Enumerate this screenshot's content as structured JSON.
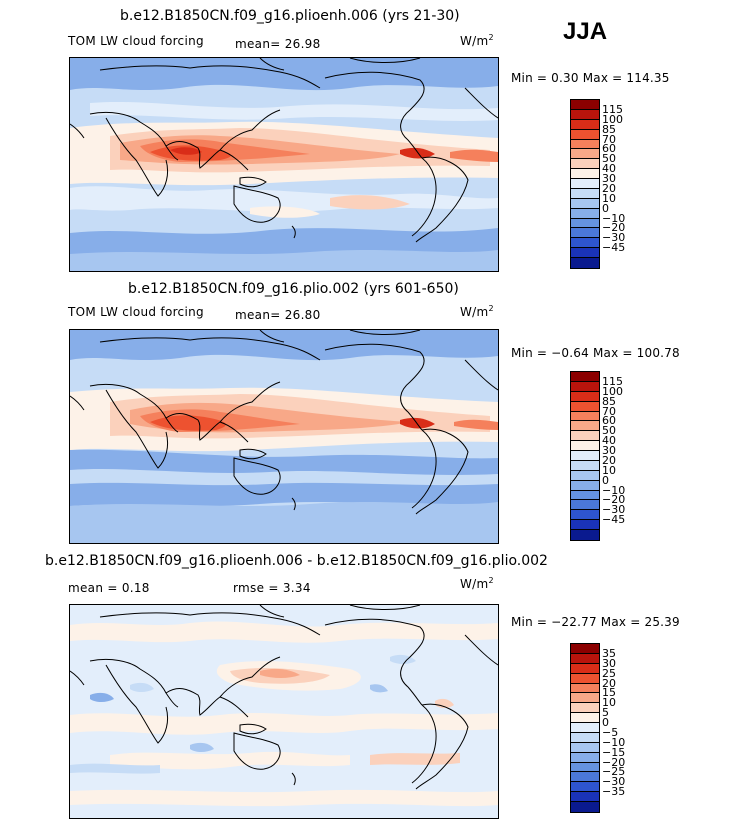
{
  "season": "JJA",
  "panels": [
    {
      "title": "b.e12.B1850CN.f09_g16.plioenh.006 (yrs 21-30)",
      "left_label": "TOM LW cloud forcing",
      "mid_label": "mean=  26.98",
      "units": "W/m",
      "units_sup": "2",
      "minmax": "Min =   0.30 Max = 114.35",
      "cbar_colors": [
        "#8b0000",
        "#b8140c",
        "#d92d18",
        "#ed5230",
        "#f5805c",
        "#f8a888",
        "#fbd1bc",
        "#fdf2e8",
        "#e3eefb",
        "#c6dcf6",
        "#a7c6f0",
        "#87aee9",
        "#6593e0",
        "#4b78d9",
        "#2e55cf",
        "#1a33b8",
        "#0a1a8f"
      ],
      "cbar_labels": [
        "115",
        "100",
        "85",
        "70",
        "60",
        "50",
        "40",
        "30",
        "20",
        "10",
        "0",
        "−10",
        "−20",
        "−30",
        "−45"
      ]
    },
    {
      "title": "b.e12.B1850CN.f09_g16.plio.002 (yrs 601-650)",
      "left_label": "TOM LW cloud forcing",
      "mid_label": "mean=  26.80",
      "units": "W/m",
      "units_sup": "2",
      "minmax": "Min =  −0.64 Max = 100.78",
      "cbar_colors": [
        "#8b0000",
        "#b8140c",
        "#d92d18",
        "#ed5230",
        "#f5805c",
        "#f8a888",
        "#fbd1bc",
        "#fdf2e8",
        "#e3eefb",
        "#c6dcf6",
        "#a7c6f0",
        "#87aee9",
        "#6593e0",
        "#4b78d9",
        "#2e55cf",
        "#1a33b8",
        "#0a1a8f"
      ],
      "cbar_labels": [
        "115",
        "100",
        "85",
        "70",
        "60",
        "50",
        "40",
        "30",
        "20",
        "10",
        "0",
        "−10",
        "−20",
        "−30",
        "−45"
      ]
    },
    {
      "title": "b.e12.B1850CN.f09_g16.plioenh.006 - b.e12.B1850CN.f09_g16.plio.002",
      "left_label": "mean =    0.18",
      "mid_label": "rmse =    3.34",
      "units": "W/m",
      "units_sup": "2",
      "minmax": "Min = −22.77 Max =  25.39",
      "cbar_colors": [
        "#8b0000",
        "#b8140c",
        "#d92d18",
        "#ed5230",
        "#f5805c",
        "#f8a888",
        "#fbd1bc",
        "#fdf2e8",
        "#e3eefb",
        "#c6dcf6",
        "#a7c6f0",
        "#87aee9",
        "#6593e0",
        "#4b78d9",
        "#2e55cf",
        "#1a33b8",
        "#0a1a8f"
      ],
      "cbar_labels": [
        "35",
        "30",
        "25",
        "20",
        "15",
        "10",
        "5",
        "0",
        "−5",
        "−10",
        "−15",
        "−20",
        "−25",
        "−30",
        "−35"
      ]
    }
  ]
}
